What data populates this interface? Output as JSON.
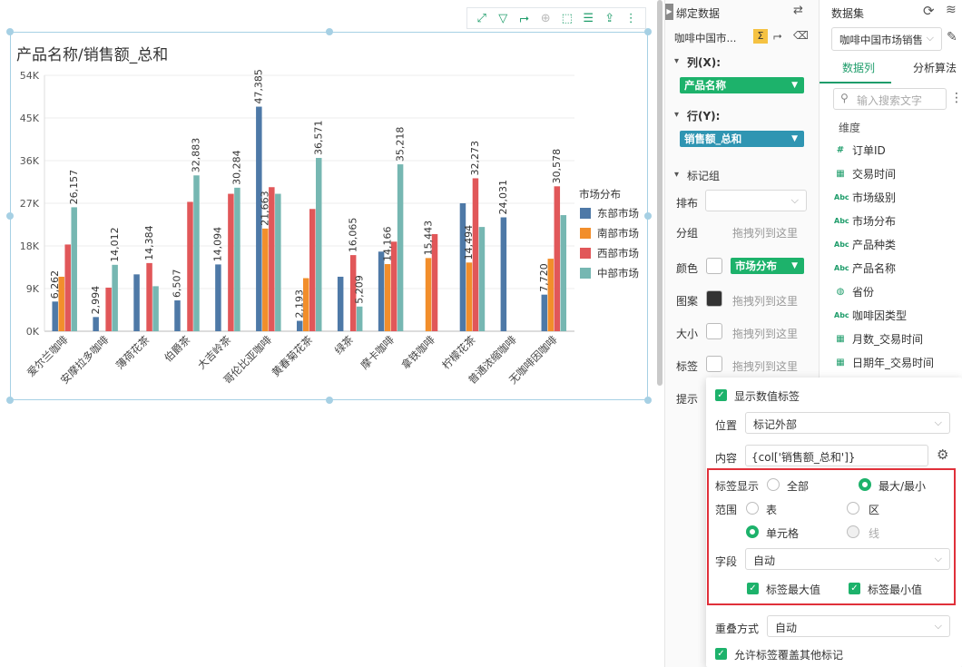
{
  "chart_title": "产品名称/销售额_总和",
  "chart_data": {
    "type": "bar",
    "title": "产品名称/销售额_总和",
    "categories": [
      "爱尔兰咖啡",
      "安摩拉多咖啡",
      "薄荷花茶",
      "伯爵茶",
      "大吉岭茶",
      "哥伦比亚咖啡",
      "黄春菊花茶",
      "绿茶",
      "摩卡咖啡",
      "拿铁咖啡",
      "柠檬花茶",
      "普通浓缩咖啡",
      "无咖啡因咖啡"
    ],
    "yticks": [
      "0K",
      "9K",
      "18K",
      "27K",
      "36K",
      "45K",
      "54K"
    ],
    "ylim": [
      0,
      54000
    ],
    "legend_title": "市场分布",
    "series": [
      {
        "name": "东部市场",
        "color": "#4e79a7",
        "values": [
          6262,
          2994,
          12000,
          6507,
          14094,
          47385,
          2193,
          11500,
          16800,
          0,
          27000,
          24031,
          7720
        ]
      },
      {
        "name": "南部市场",
        "color": "#f28e2b",
        "values": [
          11500,
          0,
          0,
          0,
          0,
          21663,
          11200,
          0,
          14166,
          15443,
          14494,
          0,
          15300
        ]
      },
      {
        "name": "西部市场",
        "color": "#e15759",
        "values": [
          18300,
          9200,
          14384,
          27300,
          29000,
          30400,
          25800,
          16065,
          18900,
          20500,
          32273,
          0,
          30578
        ]
      },
      {
        "name": "中部市场",
        "color": "#76b7b2",
        "values": [
          26157,
          14012,
          9500,
          32883,
          30284,
          29000,
          36571,
          5209,
          35218,
          0,
          22000,
          0,
          24500
        ]
      }
    ],
    "data_labels": [
      {
        "series": 0,
        "index": 0,
        "text": "6,262"
      },
      {
        "series": 3,
        "index": 0,
        "text": "26,157"
      },
      {
        "series": 0,
        "index": 1,
        "text": "2,994"
      },
      {
        "series": 3,
        "index": 1,
        "text": "14,012"
      },
      {
        "series": 2,
        "index": 2,
        "text": "14,384"
      },
      {
        "series": 0,
        "index": 3,
        "text": "6,507"
      },
      {
        "series": 3,
        "index": 3,
        "text": "32,883"
      },
      {
        "series": 0,
        "index": 4,
        "text": "14,094"
      },
      {
        "series": 3,
        "index": 4,
        "text": "30,284"
      },
      {
        "series": 0,
        "index": 5,
        "text": "47,385"
      },
      {
        "series": 1,
        "index": 5,
        "text": "21,663"
      },
      {
        "series": 0,
        "index": 6,
        "text": "2,193"
      },
      {
        "series": 3,
        "index": 6,
        "text": "36,571"
      },
      {
        "series": 2,
        "index": 7,
        "text": "16,065"
      },
      {
        "series": 3,
        "index": 7,
        "text": "5,209"
      },
      {
        "series": 1,
        "index": 8,
        "text": "14,166"
      },
      {
        "series": 3,
        "index": 8,
        "text": "35,218"
      },
      {
        "series": 1,
        "index": 9,
        "text": "15,443"
      },
      {
        "series": 1,
        "index": 10,
        "text": "14,494"
      },
      {
        "series": 2,
        "index": 10,
        "text": "32,273"
      },
      {
        "series": 0,
        "index": 11,
        "text": "24,031"
      },
      {
        "series": 0,
        "index": 12,
        "text": "7,720"
      },
      {
        "series": 2,
        "index": 12,
        "text": "30,578"
      }
    ],
    "legend_placement": "right",
    "grid": true
  },
  "bind": {
    "title": "绑定数据",
    "dataset_short": "咖啡中国市...",
    "col_label": "列(X):",
    "col_pill": "产品名称",
    "row_label": "行(Y):",
    "row_pill": "销售额_总和",
    "mark_group": "标记组",
    "arrange": "排布",
    "group": "分组",
    "group_hint": "拖拽列到这里",
    "color": "颜色",
    "color_pill": "市场分布",
    "pattern": "图案",
    "pattern_hint": "拖拽列到这里",
    "size": "大小",
    "size_hint": "拖拽列到这里",
    "label": "标签",
    "label_hint": "拖拽列到这里",
    "tooltip": "提示"
  },
  "dataset": {
    "title": "数据集",
    "selected": "咖啡中国市场销售",
    "tab_columns": "数据列",
    "tab_algo": "分析算法",
    "search_placeholder": "输入搜索文字",
    "dim_header": "维度",
    "fields": [
      {
        "icon": "#",
        "name": "订单ID"
      },
      {
        "icon": "cal",
        "name": "交易时间"
      },
      {
        "icon": "Abc",
        "name": "市场级别"
      },
      {
        "icon": "Abc",
        "name": "市场分布"
      },
      {
        "icon": "Abc",
        "name": "产品种类"
      },
      {
        "icon": "Abc",
        "name": "产品名称"
      },
      {
        "icon": "globe",
        "name": "省份"
      },
      {
        "icon": "Abc",
        "name": "咖啡因类型"
      },
      {
        "icon": "cal",
        "name": "月数_交易时间"
      },
      {
        "icon": "cal",
        "name": "日期年_交易时间"
      }
    ]
  },
  "popup": {
    "show_labels": "显示数值标签",
    "position_label": "位置",
    "position_value": "标记外部",
    "content_label": "内容",
    "content_value": "{col['销售额_总和']}",
    "label_display": "标签显示",
    "opt_all": "全部",
    "opt_maxmin": "最大/最小",
    "range_label": "范围",
    "opt_table": "表",
    "opt_area": "区",
    "opt_cell": "单元格",
    "opt_line": "线",
    "field_label": "字段",
    "field_value": "自动",
    "cb_max": "标签最大值",
    "cb_min": "标签最小值",
    "overlap_label": "重叠方式",
    "overlap_value": "自动",
    "allow_overlap": "允许标签覆盖其他标记"
  }
}
